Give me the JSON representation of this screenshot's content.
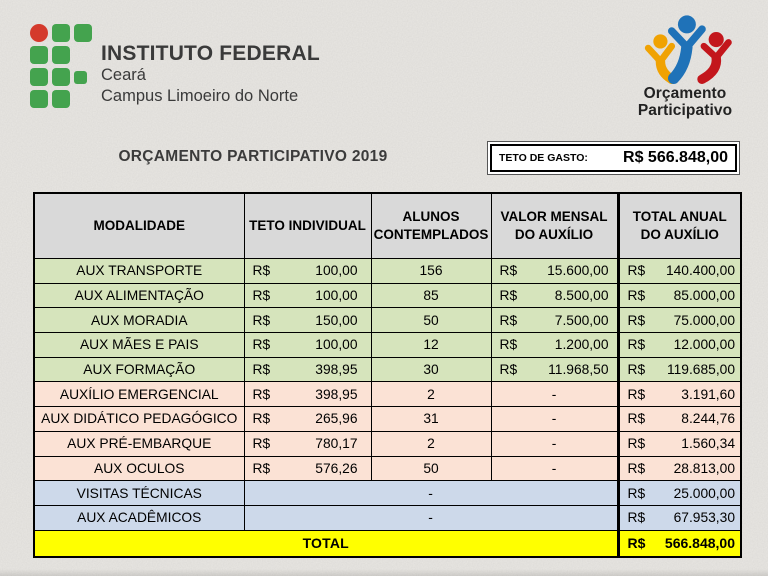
{
  "branding": {
    "institution": "INSTITUTO FEDERAL",
    "region": "Ceará",
    "campus": "Campus Limoeiro do Norte",
    "logo_green": "#44A34E",
    "logo_red": "#D43A2C",
    "op_logo_line1": "Orçamento",
    "op_logo_line2": "Participativo",
    "op_colors": {
      "yellow": "#F0A202",
      "blue": "#1F72B8",
      "red": "#C3161C"
    }
  },
  "title": "ORÇAMENTO PARTICIPATIVO 2019",
  "spending_cap": {
    "label": "TETO DE GASTO:",
    "value": "R$ 566.848,00"
  },
  "table": {
    "currency": "R$",
    "headers": [
      "MODALIDADE",
      "TETO INDIVIDUAL",
      "ALUNOS\nCONTEMPLADOS",
      "VALOR MENSAL\nDO AUXÍLIO",
      "TOTAL ANUAL\nDO AUXÍLIO"
    ],
    "rows": [
      {
        "modalidade": "AUX TRANSPORTE",
        "teto_individual": "100,00",
        "alunos": "156",
        "valor_mensal": "15.600,00",
        "total_anual": "140.400,00",
        "group": "green"
      },
      {
        "modalidade": "AUX ALIMENTAÇÃO",
        "teto_individual": "100,00",
        "alunos": "85",
        "valor_mensal": "8.500,00",
        "total_anual": "85.000,00",
        "group": "green"
      },
      {
        "modalidade": "AUX MORADIA",
        "teto_individual": "150,00",
        "alunos": "50",
        "valor_mensal": "7.500,00",
        "total_anual": "75.000,00",
        "group": "green"
      },
      {
        "modalidade": "AUX MÃES E PAIS",
        "teto_individual": "100,00",
        "alunos": "12",
        "valor_mensal": "1.200,00",
        "total_anual": "12.000,00",
        "group": "green"
      },
      {
        "modalidade": "AUX FORMAÇÃO",
        "teto_individual": "398,95",
        "alunos": "30",
        "valor_mensal": "11.968,50",
        "total_anual": "119.685,00",
        "group": "green"
      },
      {
        "modalidade": "AUXÍLIO EMERGENCIAL",
        "teto_individual": "398,95",
        "alunos": "2",
        "valor_mensal": "-",
        "total_anual": "3.191,60",
        "group": "peach"
      },
      {
        "modalidade": "AUX DIDÁTICO PEDAGÓGICO",
        "teto_individual": "265,96",
        "alunos": "31",
        "valor_mensal": "-",
        "total_anual": "8.244,76",
        "group": "peach"
      },
      {
        "modalidade": "AUX PRÉ-EMBARQUE",
        "teto_individual": "780,17",
        "alunos": "2",
        "valor_mensal": "-",
        "total_anual": "1.560,34",
        "group": "peach"
      },
      {
        "modalidade": "AUX OCULOS",
        "teto_individual": "576,26",
        "alunos": "50",
        "valor_mensal": "-",
        "total_anual": "28.813,00",
        "group": "peach"
      }
    ],
    "merged_rows": [
      {
        "modalidade": "VISITAS TÉCNICAS",
        "middle": "-",
        "total_anual": "25.000,00",
        "group": "blue"
      },
      {
        "modalidade": "AUX ACADÊMICOS",
        "middle": "-",
        "total_anual": "67.953,30",
        "group": "blue"
      }
    ],
    "total": {
      "label": "TOTAL",
      "value": "566.848,00"
    }
  }
}
